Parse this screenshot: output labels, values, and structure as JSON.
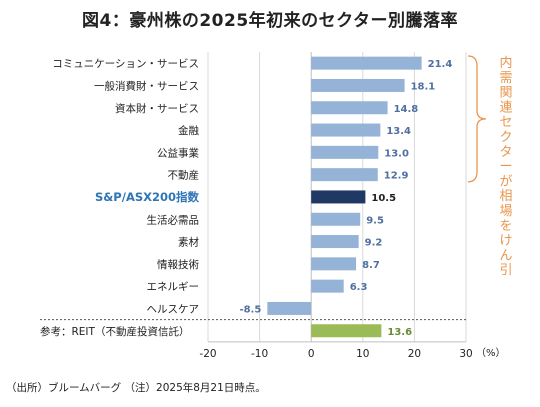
{
  "title": "図4：豪州株の2025年初来のセクター別騰落率",
  "note": "（出所）ブルームバーグ （注）2025年8月21日時点。",
  "bracket_label": "内需関連セクターが相場をけん引",
  "colors": {
    "bar": "#95b3d7",
    "highlight": "#1f3864",
    "reference": "#9bbb59",
    "highlight_label": "#2e75b6",
    "bracket": "#e8964e"
  },
  "chart_data": {
    "type": "bar",
    "orientation": "horizontal",
    "categories": [
      "コミュニケーション・サービス",
      "一般消費財・サービス",
      "資本財・サービス",
      "金融",
      "公益事業",
      "不動産",
      "S&P/ASX200指数",
      "生活必需品",
      "素材",
      "情報技術",
      "エネルギー",
      "ヘルスケア",
      "参考：REIT（不動産投資信託）"
    ],
    "values": [
      21.4,
      18.1,
      14.8,
      13.4,
      13.0,
      12.9,
      10.5,
      9.5,
      9.2,
      8.7,
      6.3,
      -8.5,
      13.6
    ],
    "value_labels": [
      "21.4",
      "18.1",
      "14.8",
      "13.4",
      "13.0",
      "12.9",
      "10.5",
      "9.5",
      "9.2",
      "8.7",
      "6.3",
      "-8.5",
      "13.6"
    ],
    "highlight_index": 6,
    "reference_index": 12,
    "xlim": [
      -20,
      30
    ],
    "xticks": [
      "-20",
      "-10",
      "0",
      "10",
      "20",
      "30"
    ],
    "unit": "（%）",
    "grid": true
  }
}
